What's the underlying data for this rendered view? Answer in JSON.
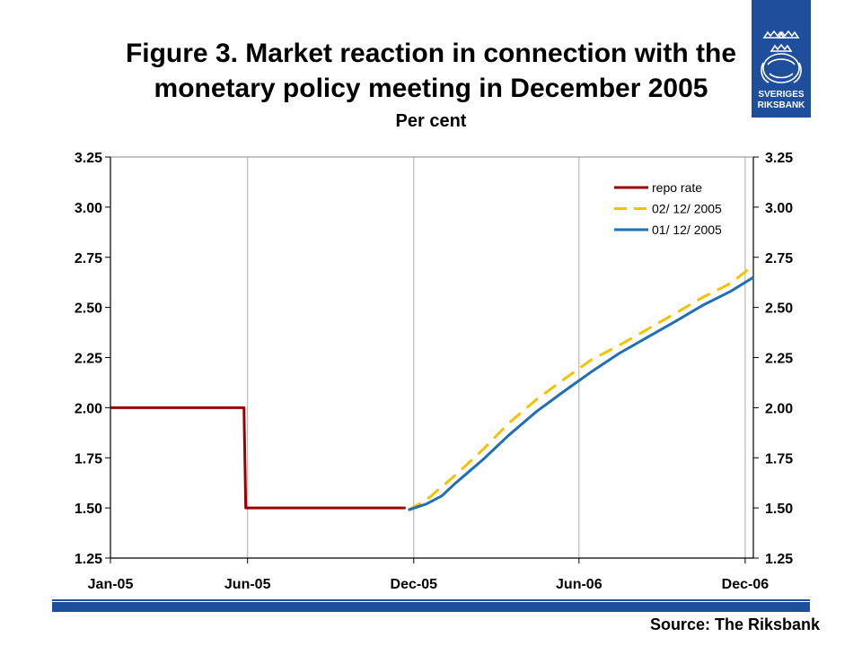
{
  "title_line1": "Figure 3. Market reaction in connection with the",
  "title_line2": "monetary policy meeting in December 2005",
  "subtitle": "Per cent",
  "source": "Source: The Riksbank",
  "logo": {
    "text_line1": "SVERIGES",
    "text_line2": "RIKSBANK",
    "color": "#1f4e9d"
  },
  "chart_data": {
    "type": "line",
    "title": "Figure 3. Market reaction in connection with the monetary policy meeting in December 2005",
    "subtitle": "Per cent",
    "xlabel": "",
    "ylabel": "Per cent",
    "x_ticks": [
      "Jan-05",
      "Jun-05",
      "Dec-05",
      "Jun-06",
      "Dec-06"
    ],
    "x_tick_dates": [
      "2005-01-01",
      "2005-06-01",
      "2005-12-01",
      "2006-06-01",
      "2006-12-01"
    ],
    "xlim": [
      "2005-01-01",
      "2006-12-10"
    ],
    "ylim": [
      1.25,
      3.25
    ],
    "y_ticks": [
      "1.25",
      "1.50",
      "1.75",
      "2.00",
      "2.25",
      "2.50",
      "2.75",
      "3.00",
      "3.25"
    ],
    "y_axis_sides": [
      "left",
      "right"
    ],
    "grid": "vertical",
    "legend_position": "top-right",
    "series": [
      {
        "name": "repo rate",
        "color": "#990000",
        "style": "solid",
        "points": [
          [
            "2005-01-01",
            2.0
          ],
          [
            "2005-05-28",
            2.0
          ],
          [
            "2005-05-29",
            1.75
          ],
          [
            "2005-05-30",
            1.5
          ],
          [
            "2005-11-22",
            1.5
          ]
        ]
      },
      {
        "name": "02/ 12/ 2005",
        "color": "#f2c300",
        "style": "dashed",
        "points": [
          [
            "2005-11-25",
            1.49
          ],
          [
            "2005-12-15",
            1.54
          ],
          [
            "2006-01-15",
            1.66
          ],
          [
            "2006-02-15",
            1.79
          ],
          [
            "2006-03-15",
            1.92
          ],
          [
            "2006-04-15",
            2.04
          ],
          [
            "2006-05-15",
            2.14
          ],
          [
            "2006-06-15",
            2.24
          ],
          [
            "2006-07-15",
            2.31
          ],
          [
            "2006-08-15",
            2.39
          ],
          [
            "2006-09-15",
            2.47
          ],
          [
            "2006-10-15",
            2.55
          ],
          [
            "2006-11-15",
            2.62
          ],
          [
            "2006-12-10",
            2.71
          ]
        ]
      },
      {
        "name": "01/ 12/ 2005",
        "color": "#1f6fb4",
        "style": "solid",
        "points": [
          [
            "2005-11-25",
            1.49
          ],
          [
            "2005-12-15",
            1.52
          ],
          [
            "2006-01-01",
            1.56
          ],
          [
            "2006-01-15",
            1.62
          ],
          [
            "2006-02-15",
            1.74
          ],
          [
            "2006-03-15",
            1.86
          ],
          [
            "2006-04-15",
            1.98
          ],
          [
            "2006-05-15",
            2.08
          ],
          [
            "2006-06-15",
            2.18
          ],
          [
            "2006-07-15",
            2.27
          ],
          [
            "2006-08-15",
            2.35
          ],
          [
            "2006-09-15",
            2.43
          ],
          [
            "2006-10-15",
            2.51
          ],
          [
            "2006-11-15",
            2.58
          ],
          [
            "2006-12-10",
            2.65
          ]
        ]
      }
    ]
  }
}
